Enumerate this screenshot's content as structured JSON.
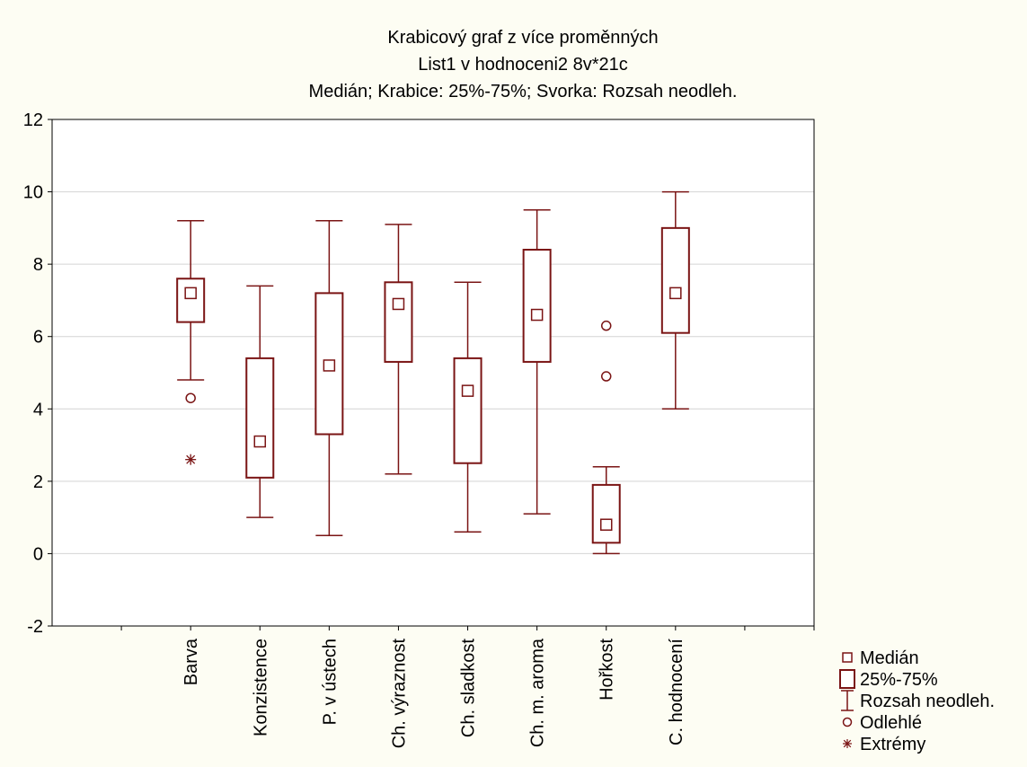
{
  "chart_data": {
    "type": "box",
    "title": "Krabicový graf z více proměnných",
    "subtitle": "List1 v hodnoceni2 8v*21c",
    "caption": "Medián; Krabice: 25%-75%; Svorka: Rozsah neodleh.",
    "ylim": [
      -2,
      12
    ],
    "yticks": [
      -2,
      0,
      2,
      4,
      6,
      8,
      10,
      12
    ],
    "grid": true,
    "color": "#7a1414",
    "background": "#fdfdf3",
    "categories": [
      "Barva",
      "Konzistence",
      "P. v ústech",
      "Ch. výraznost",
      "Ch. sladkost",
      "Ch. m. aroma",
      "Hořkost",
      "C. hodnocení"
    ],
    "boxes": [
      {
        "median": 7.2,
        "q1": 6.4,
        "q3": 7.6,
        "whisker_low": 4.8,
        "whisker_high": 9.2,
        "outliers": [
          4.3
        ],
        "extremes": [
          2.6
        ]
      },
      {
        "median": 3.1,
        "q1": 2.1,
        "q3": 5.4,
        "whisker_low": 1.0,
        "whisker_high": 7.4,
        "outliers": [],
        "extremes": []
      },
      {
        "median": 5.2,
        "q1": 3.3,
        "q3": 7.2,
        "whisker_low": 0.5,
        "whisker_high": 9.2,
        "outliers": [],
        "extremes": []
      },
      {
        "median": 6.9,
        "q1": 5.3,
        "q3": 7.5,
        "whisker_low": 2.2,
        "whisker_high": 9.1,
        "outliers": [],
        "extremes": []
      },
      {
        "median": 4.5,
        "q1": 2.5,
        "q3": 5.4,
        "whisker_low": 0.6,
        "whisker_high": 7.5,
        "outliers": [],
        "extremes": []
      },
      {
        "median": 6.6,
        "q1": 5.3,
        "q3": 8.4,
        "whisker_low": 1.1,
        "whisker_high": 9.5,
        "outliers": [],
        "extremes": []
      },
      {
        "median": 0.8,
        "q1": 0.3,
        "q3": 1.9,
        "whisker_low": 0.0,
        "whisker_high": 2.4,
        "outliers": [
          4.9,
          6.3
        ],
        "extremes": []
      },
      {
        "median": 7.2,
        "q1": 6.1,
        "q3": 9.0,
        "whisker_low": 4.0,
        "whisker_high": 10.0,
        "outliers": [],
        "extremes": []
      }
    ],
    "legend": {
      "placement": "bottom-right",
      "items": [
        {
          "symbol": "median",
          "label": "Medián"
        },
        {
          "symbol": "box",
          "label": "25%-75%"
        },
        {
          "symbol": "whisker",
          "label": "Rozsah neodleh."
        },
        {
          "symbol": "outlier",
          "label": "Odlehlé"
        },
        {
          "symbol": "extreme",
          "label": "Extrémy"
        }
      ]
    }
  }
}
